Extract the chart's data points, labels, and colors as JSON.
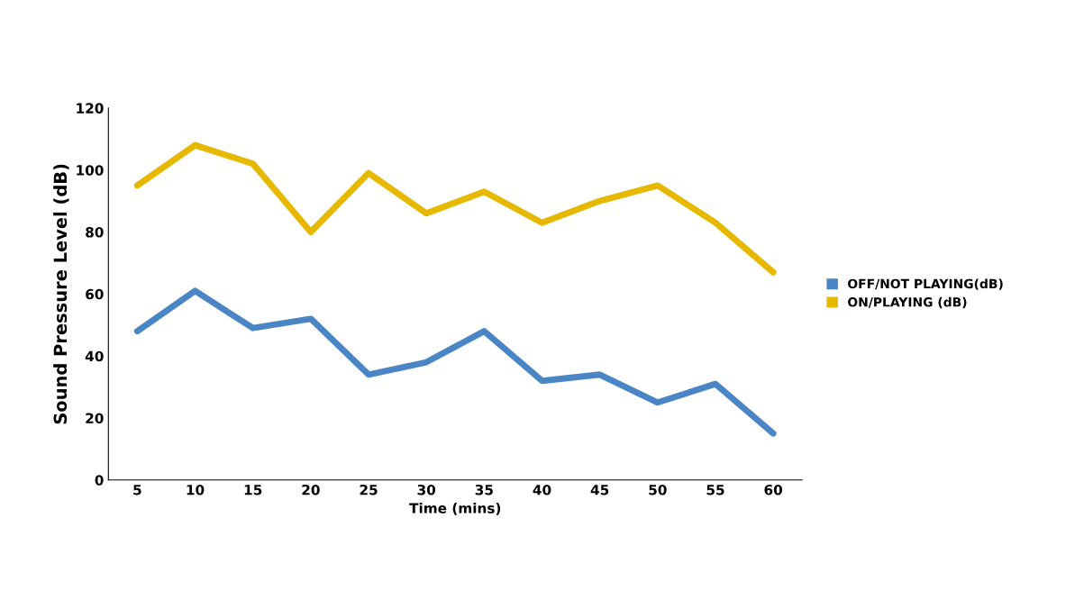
{
  "chart_data": {
    "type": "line",
    "xlabel": "Time (mins)",
    "ylabel": "Sound Pressure Level (dB)",
    "categories": [
      "5",
      "10",
      "15",
      "20",
      "25",
      "30",
      "35",
      "40",
      "45",
      "50",
      "55",
      "60"
    ],
    "series": [
      {
        "name": "OFF/NOT PLAYING(dB)",
        "color": "#4a86c5",
        "values": [
          48,
          61,
          49,
          52,
          34,
          38,
          48,
          32,
          34,
          25,
          31,
          15
        ]
      },
      {
        "name": "ON/PLAYING (dB)",
        "color": "#e6b800",
        "values": [
          95,
          108,
          102,
          80,
          99,
          86,
          93,
          83,
          90,
          95,
          83,
          67
        ]
      }
    ],
    "ylim": [
      0,
      120
    ],
    "yticks": [
      0,
      20,
      40,
      60,
      80,
      100,
      120
    ],
    "grid": false,
    "legend": "right",
    "marker": "none",
    "line_style": "solid"
  }
}
